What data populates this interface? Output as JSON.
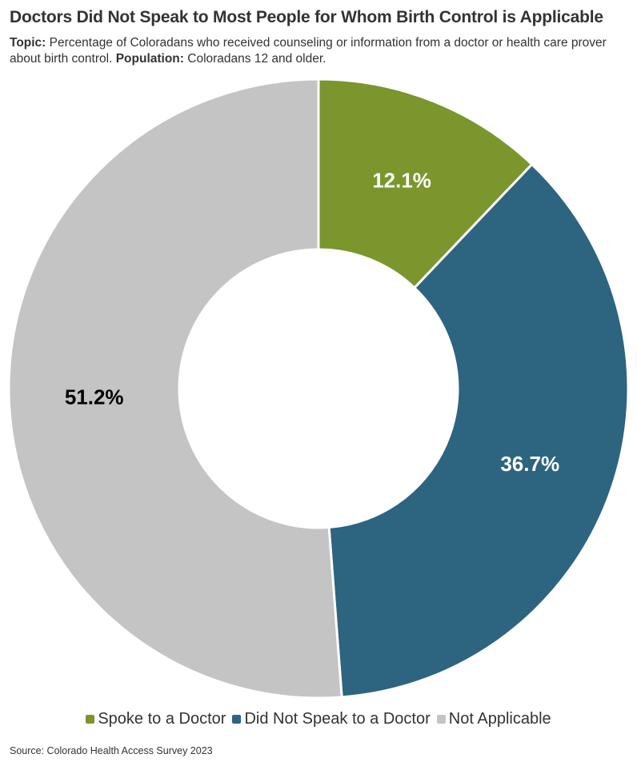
{
  "header": {
    "title": "Doctors Did Not Speak to Most People for Whom Birth Control is Applicable",
    "topic_label": "Topic:",
    "topic_text": " Percentage of Coloradans who received counseling or information from a doctor or health care prover about birth control. ",
    "population_label": "Population:",
    "population_text": " Coloradans 12 and older."
  },
  "chart_data": {
    "type": "pie",
    "donut": true,
    "title": "Doctors Did Not Speak to Most People for Whom Birth Control is Applicable",
    "categories": [
      "Spoke to a Doctor",
      "Did Not Speak to a Doctor",
      "Not Applicable"
    ],
    "values": [
      12.1,
      36.7,
      51.2
    ],
    "unit": "%",
    "labels": [
      "12.1%",
      "36.7%",
      "51.2%"
    ],
    "colors": [
      "#7a962d",
      "#2d6480",
      "#c4c4c4"
    ],
    "label_colors": [
      "#ffffff",
      "#ffffff",
      "#000000"
    ],
    "legend_placement": "bottom"
  },
  "legend": {
    "items": [
      {
        "label": "Spoke to a Doctor",
        "color": "#7a962d"
      },
      {
        "label": "Did Not Speak to a Doctor",
        "color": "#2d6480"
      },
      {
        "label": "Not Applicable",
        "color": "#c4c4c4"
      }
    ]
  },
  "footer": {
    "source": "Source: Colorado Health Access Survey 2023"
  }
}
